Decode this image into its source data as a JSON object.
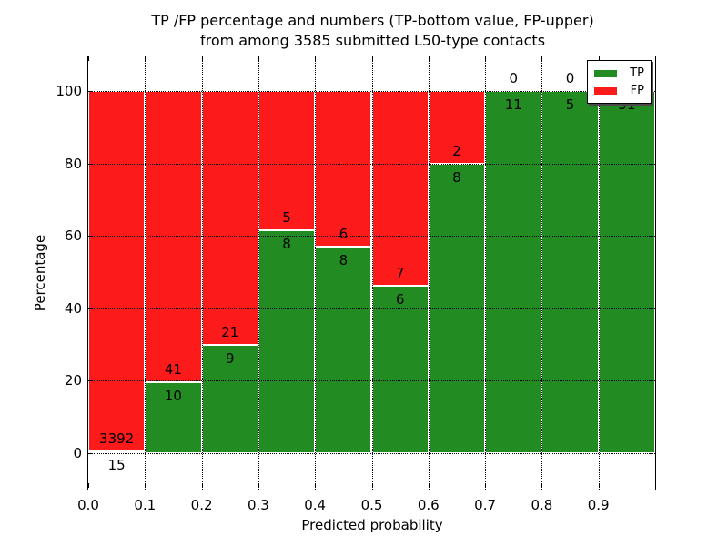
{
  "title": {
    "line1": "TP /FP percentage and numbers (TP-bottom value, FP-upper)",
    "line2": "from among 3585 submitted L50-type contacts"
  },
  "y_axis": {
    "label": "Percentage",
    "tick_labels": [
      "0",
      "20",
      "40",
      "60",
      "80",
      "100"
    ],
    "tick_values": [
      0,
      20,
      40,
      60,
      80,
      100
    ]
  },
  "x_axis": {
    "label": "Predicted probability",
    "tick_labels": [
      "0.0",
      "0.1",
      "0.2",
      "0.3",
      "0.4",
      "0.5",
      "0.6",
      "0.7",
      "0.8",
      "0.9"
    ],
    "tick_values": [
      0,
      0.1,
      0.2,
      0.3,
      0.4,
      0.5,
      0.6,
      0.7,
      0.8,
      0.9
    ]
  },
  "legend": {
    "position": "upper right",
    "items": [
      {
        "label": "TP",
        "color": "#228c22"
      },
      {
        "label": "FP",
        "color": "#fc1a1a"
      }
    ]
  },
  "colors": {
    "tp_green": "#228c22",
    "fp_red": "#fc1a1a",
    "bar_edge": "#ffffff",
    "grid": "#000000",
    "background": "#ffffff"
  },
  "chart_data": {
    "type": "bar",
    "stacked": true,
    "normalized_to_percent": true,
    "title": "TP /FP percentage and numbers (TP-bottom value, FP-upper) from among 3585 submitted L50-type contacts",
    "xlabel": "Predicted probability",
    "ylabel": "Percentage",
    "xlim": [
      0,
      1
    ],
    "ylim": [
      -10,
      110
    ],
    "grid": true,
    "legend_position": "upper right",
    "bin_edges": [
      0.0,
      0.1,
      0.2,
      0.3,
      0.4,
      0.5,
      0.6,
      0.7,
      0.8,
      0.9,
      1.0
    ],
    "categories": [
      "0.0-0.1",
      "0.1-0.2",
      "0.2-0.3",
      "0.3-0.4",
      "0.4-0.5",
      "0.5-0.6",
      "0.6-0.7",
      "0.7-0.8",
      "0.8-0.9",
      "0.9-1.0"
    ],
    "series": [
      {
        "name": "TP",
        "counts": [
          15,
          10,
          9,
          8,
          8,
          6,
          8,
          11,
          5,
          31
        ],
        "percent": [
          0.44,
          19.61,
          30.0,
          61.54,
          57.14,
          46.15,
          80.0,
          100.0,
          100.0,
          100.0
        ]
      },
      {
        "name": "FP",
        "counts": [
          3392,
          41,
          21,
          5,
          6,
          7,
          2,
          0,
          0,
          0
        ],
        "percent": [
          99.56,
          80.39,
          70.0,
          38.46,
          42.86,
          53.85,
          20.0,
          0.0,
          0.0,
          0.0
        ]
      }
    ],
    "total_contacts": 3585
  }
}
